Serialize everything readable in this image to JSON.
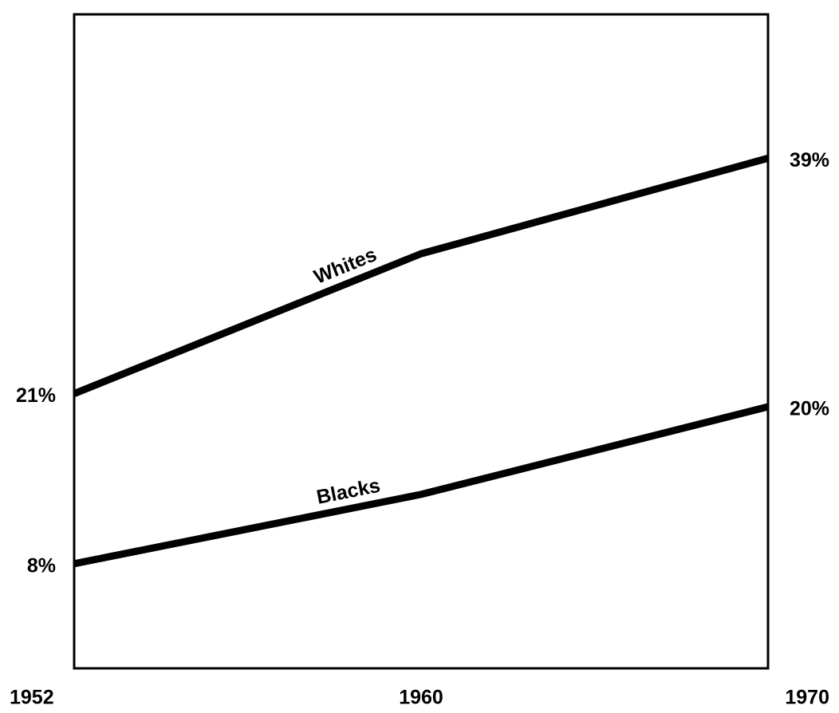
{
  "chart_data": {
    "type": "line",
    "categories": [
      "1952",
      "1960",
      "1970"
    ],
    "series": [
      {
        "name": "Whites",
        "color": "#000000",
        "values": [
          21,
          31.7,
          39
        ],
        "value_labels": [
          "21%",
          null,
          "39%"
        ]
      },
      {
        "name": "Blacks",
        "color": "#000000",
        "values": [
          8,
          13.3,
          20
        ],
        "value_labels": [
          "8%",
          null,
          "20%"
        ]
      }
    ],
    "ylim": [
      0,
      50
    ]
  }
}
